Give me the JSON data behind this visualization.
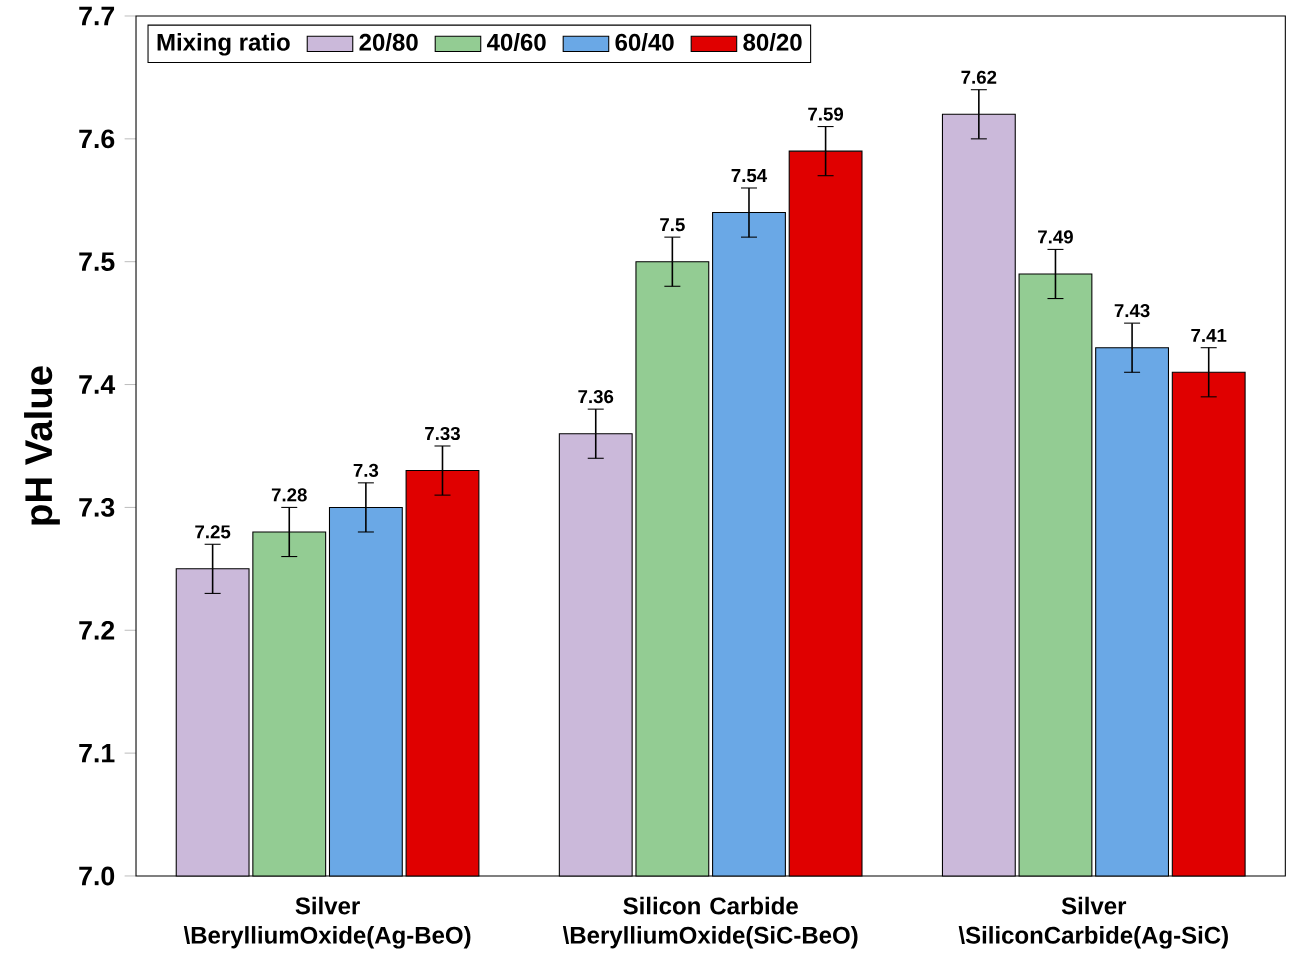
{
  "chart_data": {
    "type": "bar",
    "ylabel": "pH Value",
    "legend_title": "Mixing ratio",
    "categories": [
      "Silver \\BerylliumOxide(Ag-BeO)",
      "Silicon Carbide \\BerylliumOxide(SiC-BeO)",
      "Silver \\SiliconCarbide(Ag-SiC)"
    ],
    "series": [
      {
        "name": "20/80",
        "color": "#cbb9da",
        "values": [
          7.25,
          7.36,
          7.62
        ],
        "errors": [
          0.02,
          0.02,
          0.02
        ],
        "value_labels": [
          "7.25",
          "7.36",
          "7.62"
        ]
      },
      {
        "name": "40/60",
        "color": "#93cc93",
        "values": [
          7.28,
          7.5,
          7.49
        ],
        "errors": [
          0.02,
          0.02,
          0.02
        ],
        "value_labels": [
          "7.28",
          "7.5",
          "7.49"
        ]
      },
      {
        "name": "60/40",
        "color": "#6aa8e6",
        "values": [
          7.3,
          7.54,
          7.43
        ],
        "errors": [
          0.02,
          0.02,
          0.02
        ],
        "value_labels": [
          "7.3",
          "7.54",
          "7.43"
        ]
      },
      {
        "name": "80/20",
        "color": "#e00000",
        "values": [
          7.33,
          7.59,
          7.41
        ],
        "errors": [
          0.02,
          0.02,
          0.02
        ],
        "value_labels": [
          "7.33",
          "7.59",
          "7.41"
        ]
      }
    ],
    "ylim": [
      7.0,
      7.7
    ],
    "yticks": [
      {
        "value": 7.0,
        "label": "7.0"
      },
      {
        "value": 7.1,
        "label": "7.1"
      },
      {
        "value": 7.2,
        "label": "7.2"
      },
      {
        "value": 7.3,
        "label": "7.3"
      },
      {
        "value": 7.4,
        "label": "7.4"
      },
      {
        "value": 7.5,
        "label": "7.5"
      },
      {
        "value": 7.6,
        "label": "7.6"
      },
      {
        "value": 7.7,
        "label": "7.7"
      }
    ],
    "legend": "top left",
    "grid": false
  }
}
